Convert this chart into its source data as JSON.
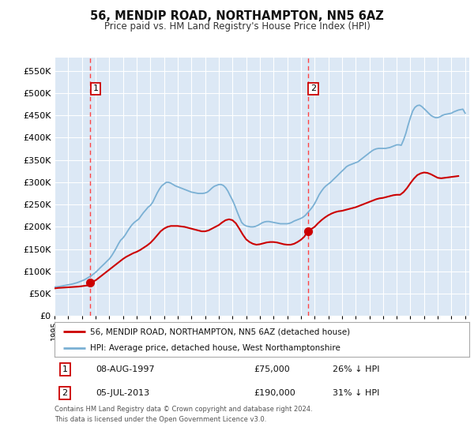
{
  "title": "56, MENDIP ROAD, NORTHAMPTON, NN5 6AZ",
  "subtitle": "Price paid vs. HM Land Registry's House Price Index (HPI)",
  "fig_bg_color": "#ffffff",
  "plot_bg_color": "#dce8f5",
  "grid_color": "#ffffff",
  "hpi_line_color": "#7ab0d4",
  "price_line_color": "#cc0000",
  "marker_color": "#cc0000",
  "vline_color": "#ff4444",
  "annotation_box_color": "#cc0000",
  "ylim": [
    0,
    580000
  ],
  "yticks": [
    0,
    50000,
    100000,
    150000,
    200000,
    250000,
    300000,
    350000,
    400000,
    450000,
    500000,
    550000
  ],
  "xlim_start": 1995.0,
  "xlim_end": 2025.3,
  "purchase1_year": 1997.6,
  "purchase1_price": 75000,
  "purchase1_label": "1",
  "purchase2_year": 2013.5,
  "purchase2_price": 190000,
  "purchase2_label": "2",
  "legend_line1": "56, MENDIP ROAD, NORTHAMPTON, NN5 6AZ (detached house)",
  "legend_line2": "HPI: Average price, detached house, West Northamptonshire",
  "table_row1_num": "1",
  "table_row1_date": "08-AUG-1997",
  "table_row1_price": "£75,000",
  "table_row1_hpi": "26% ↓ HPI",
  "table_row2_num": "2",
  "table_row2_date": "05-JUL-2013",
  "table_row2_price": "£190,000",
  "table_row2_hpi": "31% ↓ HPI",
  "footer": "Contains HM Land Registry data © Crown copyright and database right 2024.\nThis data is licensed under the Open Government Licence v3.0.",
  "hpi_data_x": [
    1995.0,
    1995.17,
    1995.33,
    1995.5,
    1995.67,
    1995.83,
    1996.0,
    1996.17,
    1996.33,
    1996.5,
    1996.67,
    1996.83,
    1997.0,
    1997.17,
    1997.33,
    1997.5,
    1997.67,
    1997.83,
    1998.0,
    1998.17,
    1998.33,
    1998.5,
    1998.67,
    1998.83,
    1999.0,
    1999.17,
    1999.33,
    1999.5,
    1999.67,
    1999.83,
    2000.0,
    2000.17,
    2000.33,
    2000.5,
    2000.67,
    2000.83,
    2001.0,
    2001.17,
    2001.33,
    2001.5,
    2001.67,
    2001.83,
    2002.0,
    2002.17,
    2002.33,
    2002.5,
    2002.67,
    2002.83,
    2003.0,
    2003.17,
    2003.33,
    2003.5,
    2003.67,
    2003.83,
    2004.0,
    2004.17,
    2004.33,
    2004.5,
    2004.67,
    2004.83,
    2005.0,
    2005.17,
    2005.33,
    2005.5,
    2005.67,
    2005.83,
    2006.0,
    2006.17,
    2006.33,
    2006.5,
    2006.67,
    2006.83,
    2007.0,
    2007.17,
    2007.33,
    2007.5,
    2007.67,
    2007.83,
    2008.0,
    2008.17,
    2008.33,
    2008.5,
    2008.67,
    2008.83,
    2009.0,
    2009.17,
    2009.33,
    2009.5,
    2009.67,
    2009.83,
    2010.0,
    2010.17,
    2010.33,
    2010.5,
    2010.67,
    2010.83,
    2011.0,
    2011.17,
    2011.33,
    2011.5,
    2011.67,
    2011.83,
    2012.0,
    2012.17,
    2012.33,
    2012.5,
    2012.67,
    2012.83,
    2013.0,
    2013.17,
    2013.33,
    2013.5,
    2013.67,
    2013.83,
    2014.0,
    2014.17,
    2014.33,
    2014.5,
    2014.67,
    2014.83,
    2015.0,
    2015.17,
    2015.33,
    2015.5,
    2015.67,
    2015.83,
    2016.0,
    2016.17,
    2016.33,
    2016.5,
    2016.67,
    2016.83,
    2017.0,
    2017.17,
    2017.33,
    2017.5,
    2017.67,
    2017.83,
    2018.0,
    2018.17,
    2018.33,
    2018.5,
    2018.67,
    2018.83,
    2019.0,
    2019.17,
    2019.33,
    2019.5,
    2019.67,
    2019.83,
    2020.0,
    2020.17,
    2020.33,
    2020.5,
    2020.67,
    2020.83,
    2021.0,
    2021.17,
    2021.33,
    2021.5,
    2021.67,
    2021.83,
    2022.0,
    2022.17,
    2022.33,
    2022.5,
    2022.67,
    2022.83,
    2023.0,
    2023.17,
    2023.33,
    2023.5,
    2023.67,
    2023.83,
    2024.0,
    2024.17,
    2024.33,
    2024.5,
    2024.67,
    2024.83,
    2025.0
  ],
  "hpi_data_y": [
    65000,
    65500,
    66000,
    67000,
    68000,
    69000,
    70000,
    71000,
    72000,
    73500,
    75000,
    77000,
    79000,
    81000,
    84000,
    87000,
    90000,
    94000,
    98000,
    103000,
    108000,
    113000,
    118000,
    123000,
    128000,
    135000,
    143000,
    152000,
    162000,
    170000,
    175000,
    182000,
    190000,
    198000,
    205000,
    210000,
    214000,
    218000,
    225000,
    232000,
    238000,
    244000,
    248000,
    255000,
    265000,
    276000,
    285000,
    292000,
    296000,
    300000,
    300000,
    298000,
    295000,
    292000,
    290000,
    288000,
    286000,
    284000,
    282000,
    280000,
    278000,
    277000,
    276000,
    275000,
    275000,
    275000,
    276000,
    278000,
    282000,
    287000,
    291000,
    293000,
    295000,
    295000,
    293000,
    288000,
    280000,
    270000,
    260000,
    248000,
    235000,
    222000,
    210000,
    205000,
    202000,
    201000,
    200000,
    200000,
    201000,
    203000,
    206000,
    209000,
    211000,
    212000,
    212000,
    211000,
    210000,
    209000,
    208000,
    207000,
    207000,
    207000,
    207000,
    208000,
    210000,
    213000,
    215000,
    217000,
    219000,
    222000,
    226000,
    232000,
    238000,
    244000,
    252000,
    262000,
    272000,
    280000,
    287000,
    292000,
    296000,
    300000,
    305000,
    310000,
    315000,
    320000,
    325000,
    330000,
    335000,
    338000,
    340000,
    342000,
    344000,
    346000,
    350000,
    354000,
    358000,
    362000,
    366000,
    370000,
    373000,
    375000,
    376000,
    376000,
    376000,
    376000,
    377000,
    378000,
    380000,
    382000,
    384000,
    384000,
    383000,
    395000,
    410000,
    428000,
    445000,
    460000,
    468000,
    472000,
    473000,
    470000,
    465000,
    460000,
    455000,
    450000,
    447000,
    445000,
    445000,
    447000,
    450000,
    452000,
    453000,
    454000,
    455000,
    458000,
    460000,
    462000,
    463000,
    464000,
    455000
  ],
  "price_data_x": [
    1995.0,
    1995.25,
    1995.5,
    1995.75,
    1996.0,
    1996.25,
    1996.5,
    1996.75,
    1997.0,
    1997.25,
    1997.5,
    1997.6,
    1998.0,
    1998.25,
    1998.5,
    1998.75,
    1999.0,
    1999.25,
    1999.5,
    1999.75,
    2000.0,
    2000.25,
    2000.5,
    2000.75,
    2001.0,
    2001.25,
    2001.5,
    2001.75,
    2002.0,
    2002.25,
    2002.5,
    2002.75,
    2003.0,
    2003.25,
    2003.5,
    2003.75,
    2004.0,
    2004.25,
    2004.5,
    2004.75,
    2005.0,
    2005.25,
    2005.5,
    2005.75,
    2006.0,
    2006.25,
    2006.5,
    2006.75,
    2007.0,
    2007.25,
    2007.5,
    2007.75,
    2008.0,
    2008.25,
    2008.5,
    2008.75,
    2009.0,
    2009.25,
    2009.5,
    2009.75,
    2010.0,
    2010.25,
    2010.5,
    2010.75,
    2011.0,
    2011.25,
    2011.5,
    2011.75,
    2012.0,
    2012.25,
    2012.5,
    2012.75,
    2013.0,
    2013.25,
    2013.5,
    2014.0,
    2014.25,
    2014.5,
    2014.75,
    2015.0,
    2015.25,
    2015.5,
    2015.75,
    2016.0,
    2016.25,
    2016.5,
    2016.75,
    2017.0,
    2017.25,
    2017.5,
    2017.75,
    2018.0,
    2018.25,
    2018.5,
    2018.75,
    2019.0,
    2019.25,
    2019.5,
    2019.75,
    2020.0,
    2020.25,
    2020.5,
    2020.75,
    2021.0,
    2021.25,
    2021.5,
    2021.75,
    2022.0,
    2022.25,
    2022.5,
    2022.75,
    2023.0,
    2023.25,
    2023.5,
    2023.75,
    2024.0,
    2024.25,
    2024.5
  ],
  "price_data_y": [
    62000,
    63000,
    63500,
    64000,
    64500,
    65000,
    65500,
    66000,
    67000,
    68000,
    69000,
    75000,
    80000,
    86000,
    92000,
    98000,
    104000,
    110000,
    116000,
    122000,
    128000,
    133000,
    137000,
    141000,
    144000,
    148000,
    153000,
    158000,
    164000,
    172000,
    181000,
    190000,
    196000,
    200000,
    202000,
    202000,
    202000,
    201000,
    200000,
    198000,
    196000,
    194000,
    192000,
    190000,
    190000,
    192000,
    196000,
    200000,
    204000,
    210000,
    215000,
    217000,
    215000,
    208000,
    196000,
    183000,
    172000,
    166000,
    162000,
    160000,
    161000,
    163000,
    165000,
    166000,
    166000,
    165000,
    163000,
    161000,
    160000,
    160000,
    162000,
    166000,
    171000,
    178000,
    190000,
    200000,
    208000,
    215000,
    221000,
    226000,
    230000,
    233000,
    235000,
    236000,
    238000,
    240000,
    242000,
    244000,
    247000,
    250000,
    253000,
    256000,
    259000,
    262000,
    264000,
    265000,
    267000,
    269000,
    271000,
    272000,
    272000,
    278000,
    287000,
    298000,
    308000,
    316000,
    320000,
    322000,
    321000,
    318000,
    314000,
    310000,
    309000,
    310000,
    311000,
    312000,
    313000,
    314000
  ]
}
